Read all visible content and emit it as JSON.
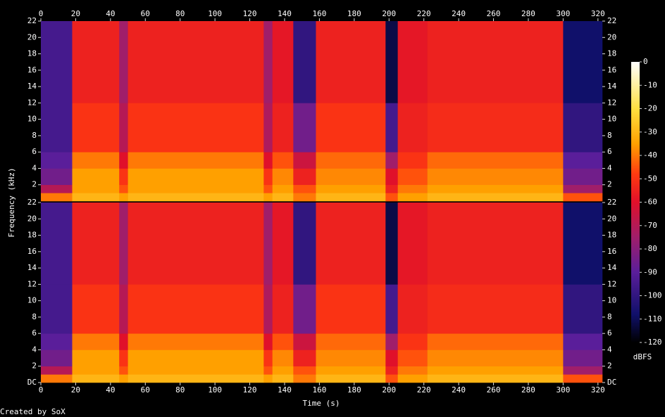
{
  "chart_data": {
    "type": "spectrogram",
    "xlabel": "Time (s)",
    "ylabel": "Frequency (kHz)",
    "credit": "Created by SoX",
    "xlim": [
      0,
      322.5
    ],
    "xticks": [
      0,
      20,
      40,
      60,
      80,
      100,
      120,
      140,
      160,
      180,
      200,
      220,
      240,
      260,
      280,
      300,
      320
    ],
    "time_edges": [
      0,
      18,
      45,
      50,
      128,
      133,
      145,
      158,
      198,
      205,
      222,
      300,
      322.5
    ],
    "freq_edges": [
      0,
      1,
      2,
      4,
      6,
      12,
      22
    ],
    "colorbar": {
      "label": "dBFS",
      "lim": [
        -120,
        0
      ],
      "ticks": [
        0,
        -10,
        -20,
        -30,
        -40,
        -50,
        -60,
        -70,
        -80,
        -90,
        -100,
        -110,
        -120
      ],
      "colormap": [
        [
          -120,
          "#000000"
        ],
        [
          -108,
          "#10106a"
        ],
        [
          -90,
          "#5a1e9a"
        ],
        [
          -75,
          "#a01e6a"
        ],
        [
          -60,
          "#e0102a"
        ],
        [
          -48,
          "#ff3a10"
        ],
        [
          -35,
          "#ffa000"
        ],
        [
          -20,
          "#ffe040"
        ],
        [
          0,
          "#ffffff"
        ]
      ]
    },
    "channels": [
      {
        "ylim": [
          0,
          22
        ],
        "yticks": [
          2,
          4,
          6,
          8,
          10,
          12,
          14,
          16,
          18,
          20,
          22
        ],
        "values": [
          [
            -40,
            -30,
            -35,
            -30,
            -35,
            -30,
            -40,
            -30,
            -45,
            -35,
            -30,
            -45
          ],
          [
            -70,
            -35,
            -45,
            -35,
            -45,
            -35,
            -45,
            -35,
            -55,
            -40,
            -35,
            -75
          ],
          [
            -85,
            -35,
            -50,
            -35,
            -50,
            -38,
            -55,
            -38,
            -60,
            -45,
            -38,
            -85
          ],
          [
            -90,
            -40,
            -60,
            -40,
            -60,
            -45,
            -65,
            -42,
            -75,
            -50,
            -42,
            -90
          ],
          [
            -95,
            -50,
            -70,
            -50,
            -72,
            -55,
            -85,
            -50,
            -95,
            -55,
            -52,
            -100
          ],
          [
            -95,
            -55,
            -75,
            -55,
            -75,
            -58,
            -100,
            -55,
            -112,
            -58,
            -55,
            -108
          ]
        ]
      },
      {
        "ylim": [
          0,
          22
        ],
        "yticks": [
          {
            "value": 0,
            "label": "DC"
          },
          2,
          4,
          6,
          8,
          10,
          12,
          14,
          16,
          18,
          20,
          22
        ],
        "values": [
          [
            -40,
            -30,
            -35,
            -30,
            -35,
            -30,
            -40,
            -30,
            -45,
            -35,
            -30,
            -45
          ],
          [
            -70,
            -35,
            -45,
            -35,
            -45,
            -35,
            -45,
            -35,
            -55,
            -40,
            -35,
            -75
          ],
          [
            -85,
            -35,
            -50,
            -35,
            -50,
            -38,
            -55,
            -38,
            -60,
            -45,
            -38,
            -85
          ],
          [
            -90,
            -40,
            -60,
            -40,
            -60,
            -45,
            -65,
            -42,
            -75,
            -50,
            -42,
            -90
          ],
          [
            -95,
            -50,
            -70,
            -50,
            -72,
            -55,
            -85,
            -50,
            -95,
            -55,
            -52,
            -100
          ],
          [
            -95,
            -55,
            -75,
            -55,
            -75,
            -58,
            -100,
            -55,
            -112,
            -58,
            -55,
            -108
          ]
        ]
      }
    ]
  }
}
